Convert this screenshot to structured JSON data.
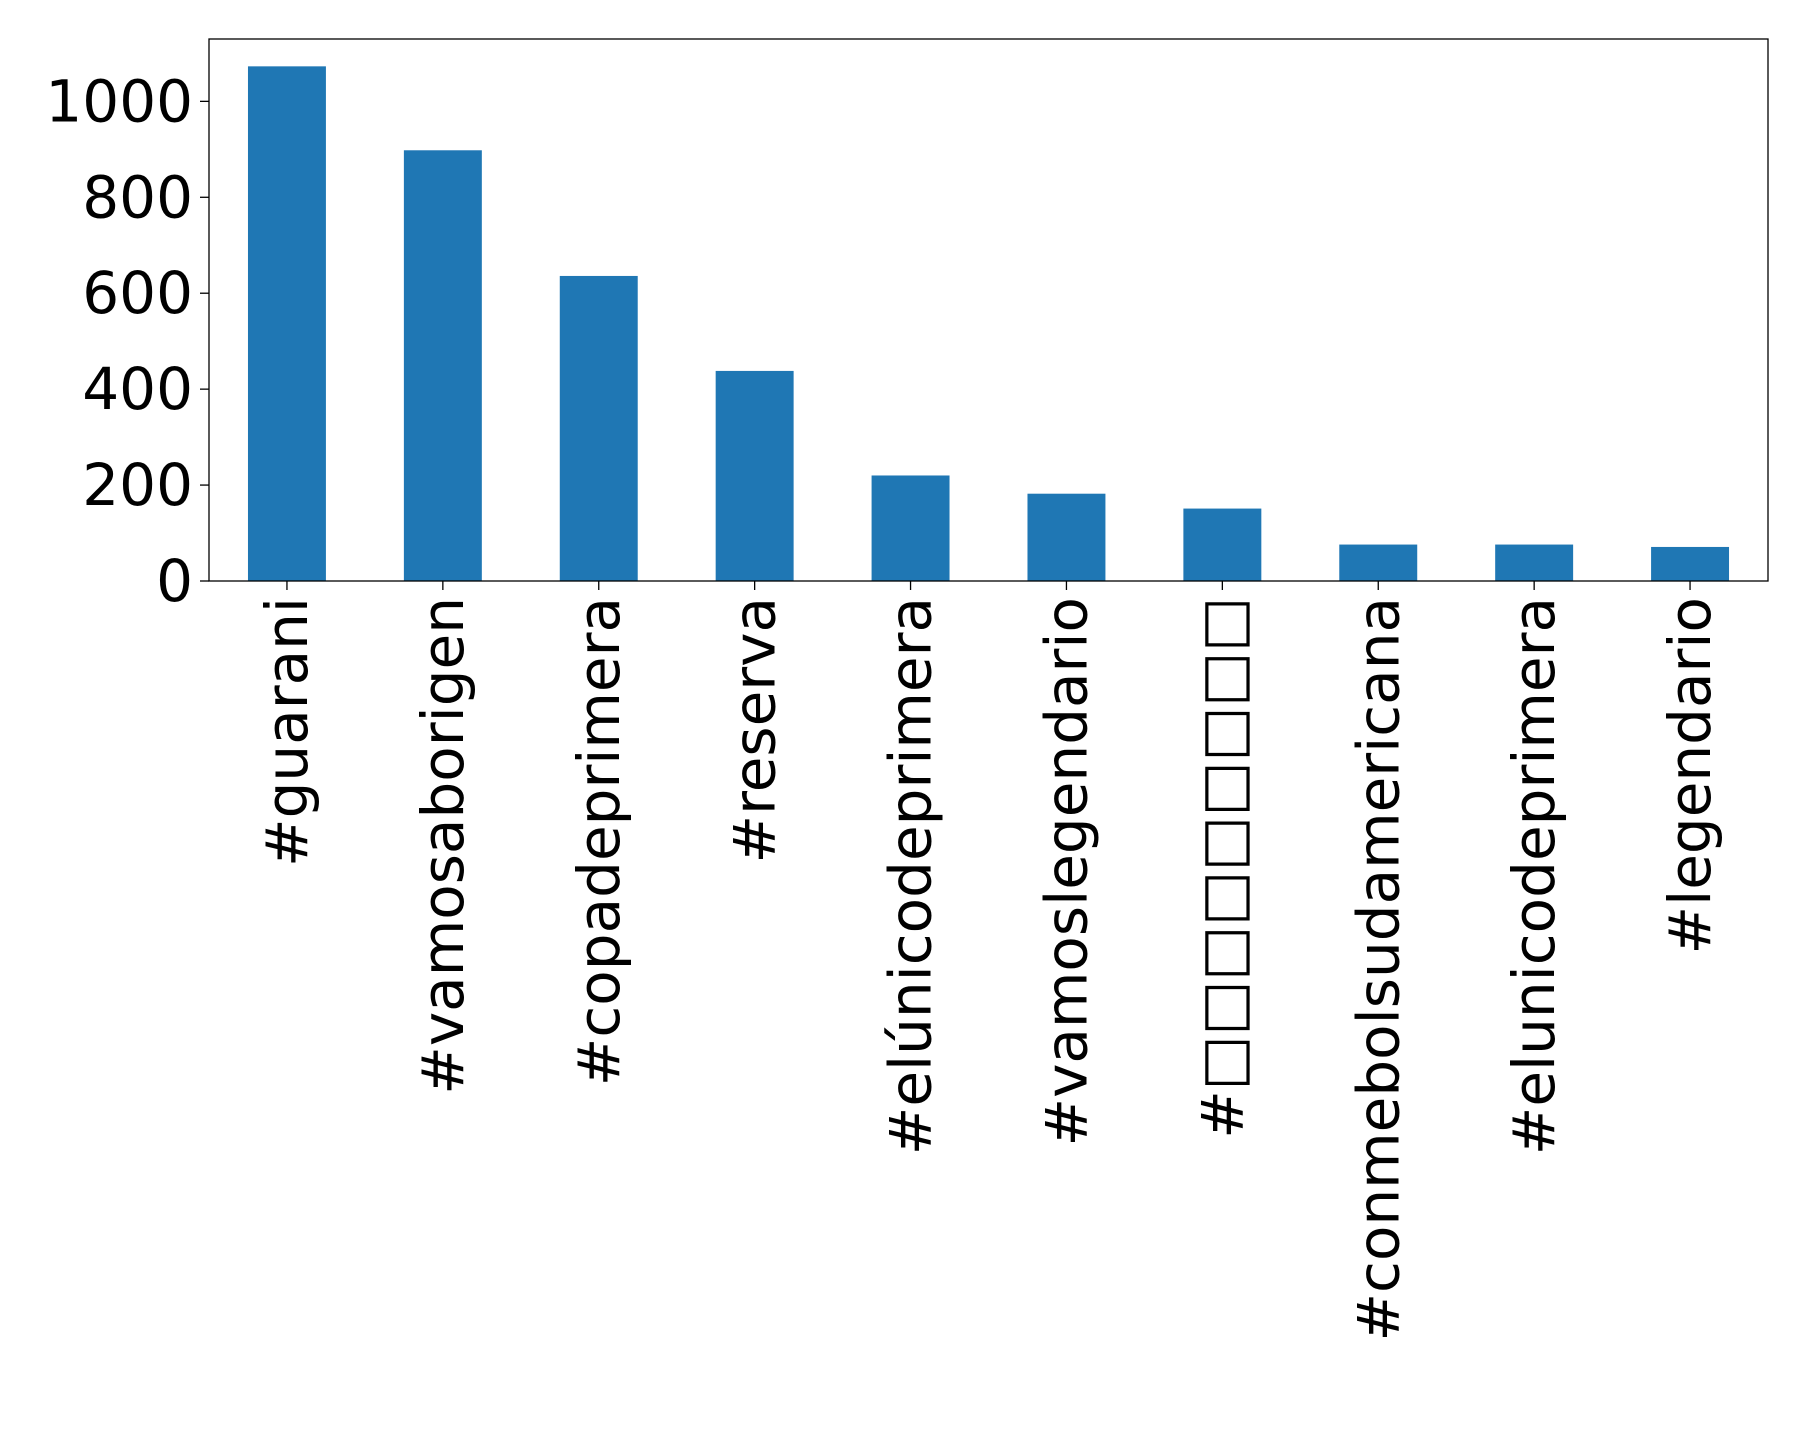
{
  "chart_data": {
    "type": "bar",
    "title": "",
    "xlabel": "",
    "ylabel": "",
    "categories": [
      "#guarani",
      "#vamosaborigen",
      "#copadeprimera",
      "#reserva",
      "#elúnicodeprimera",
      "#vamoslegendario",
      "#□□□□□□□□□",
      "#conmebolsudamericana",
      "#elunicodeprimera",
      "#legendario"
    ],
    "values": [
      1073,
      898,
      636,
      438,
      220,
      182,
      151,
      76,
      76,
      71
    ],
    "ylim": [
      0,
      1130
    ],
    "yticks": [
      "0",
      "200",
      "400",
      "600",
      "800",
      "1000"
    ],
    "bar_color": "#1f77b4",
    "grid": false,
    "legend": "none"
  }
}
